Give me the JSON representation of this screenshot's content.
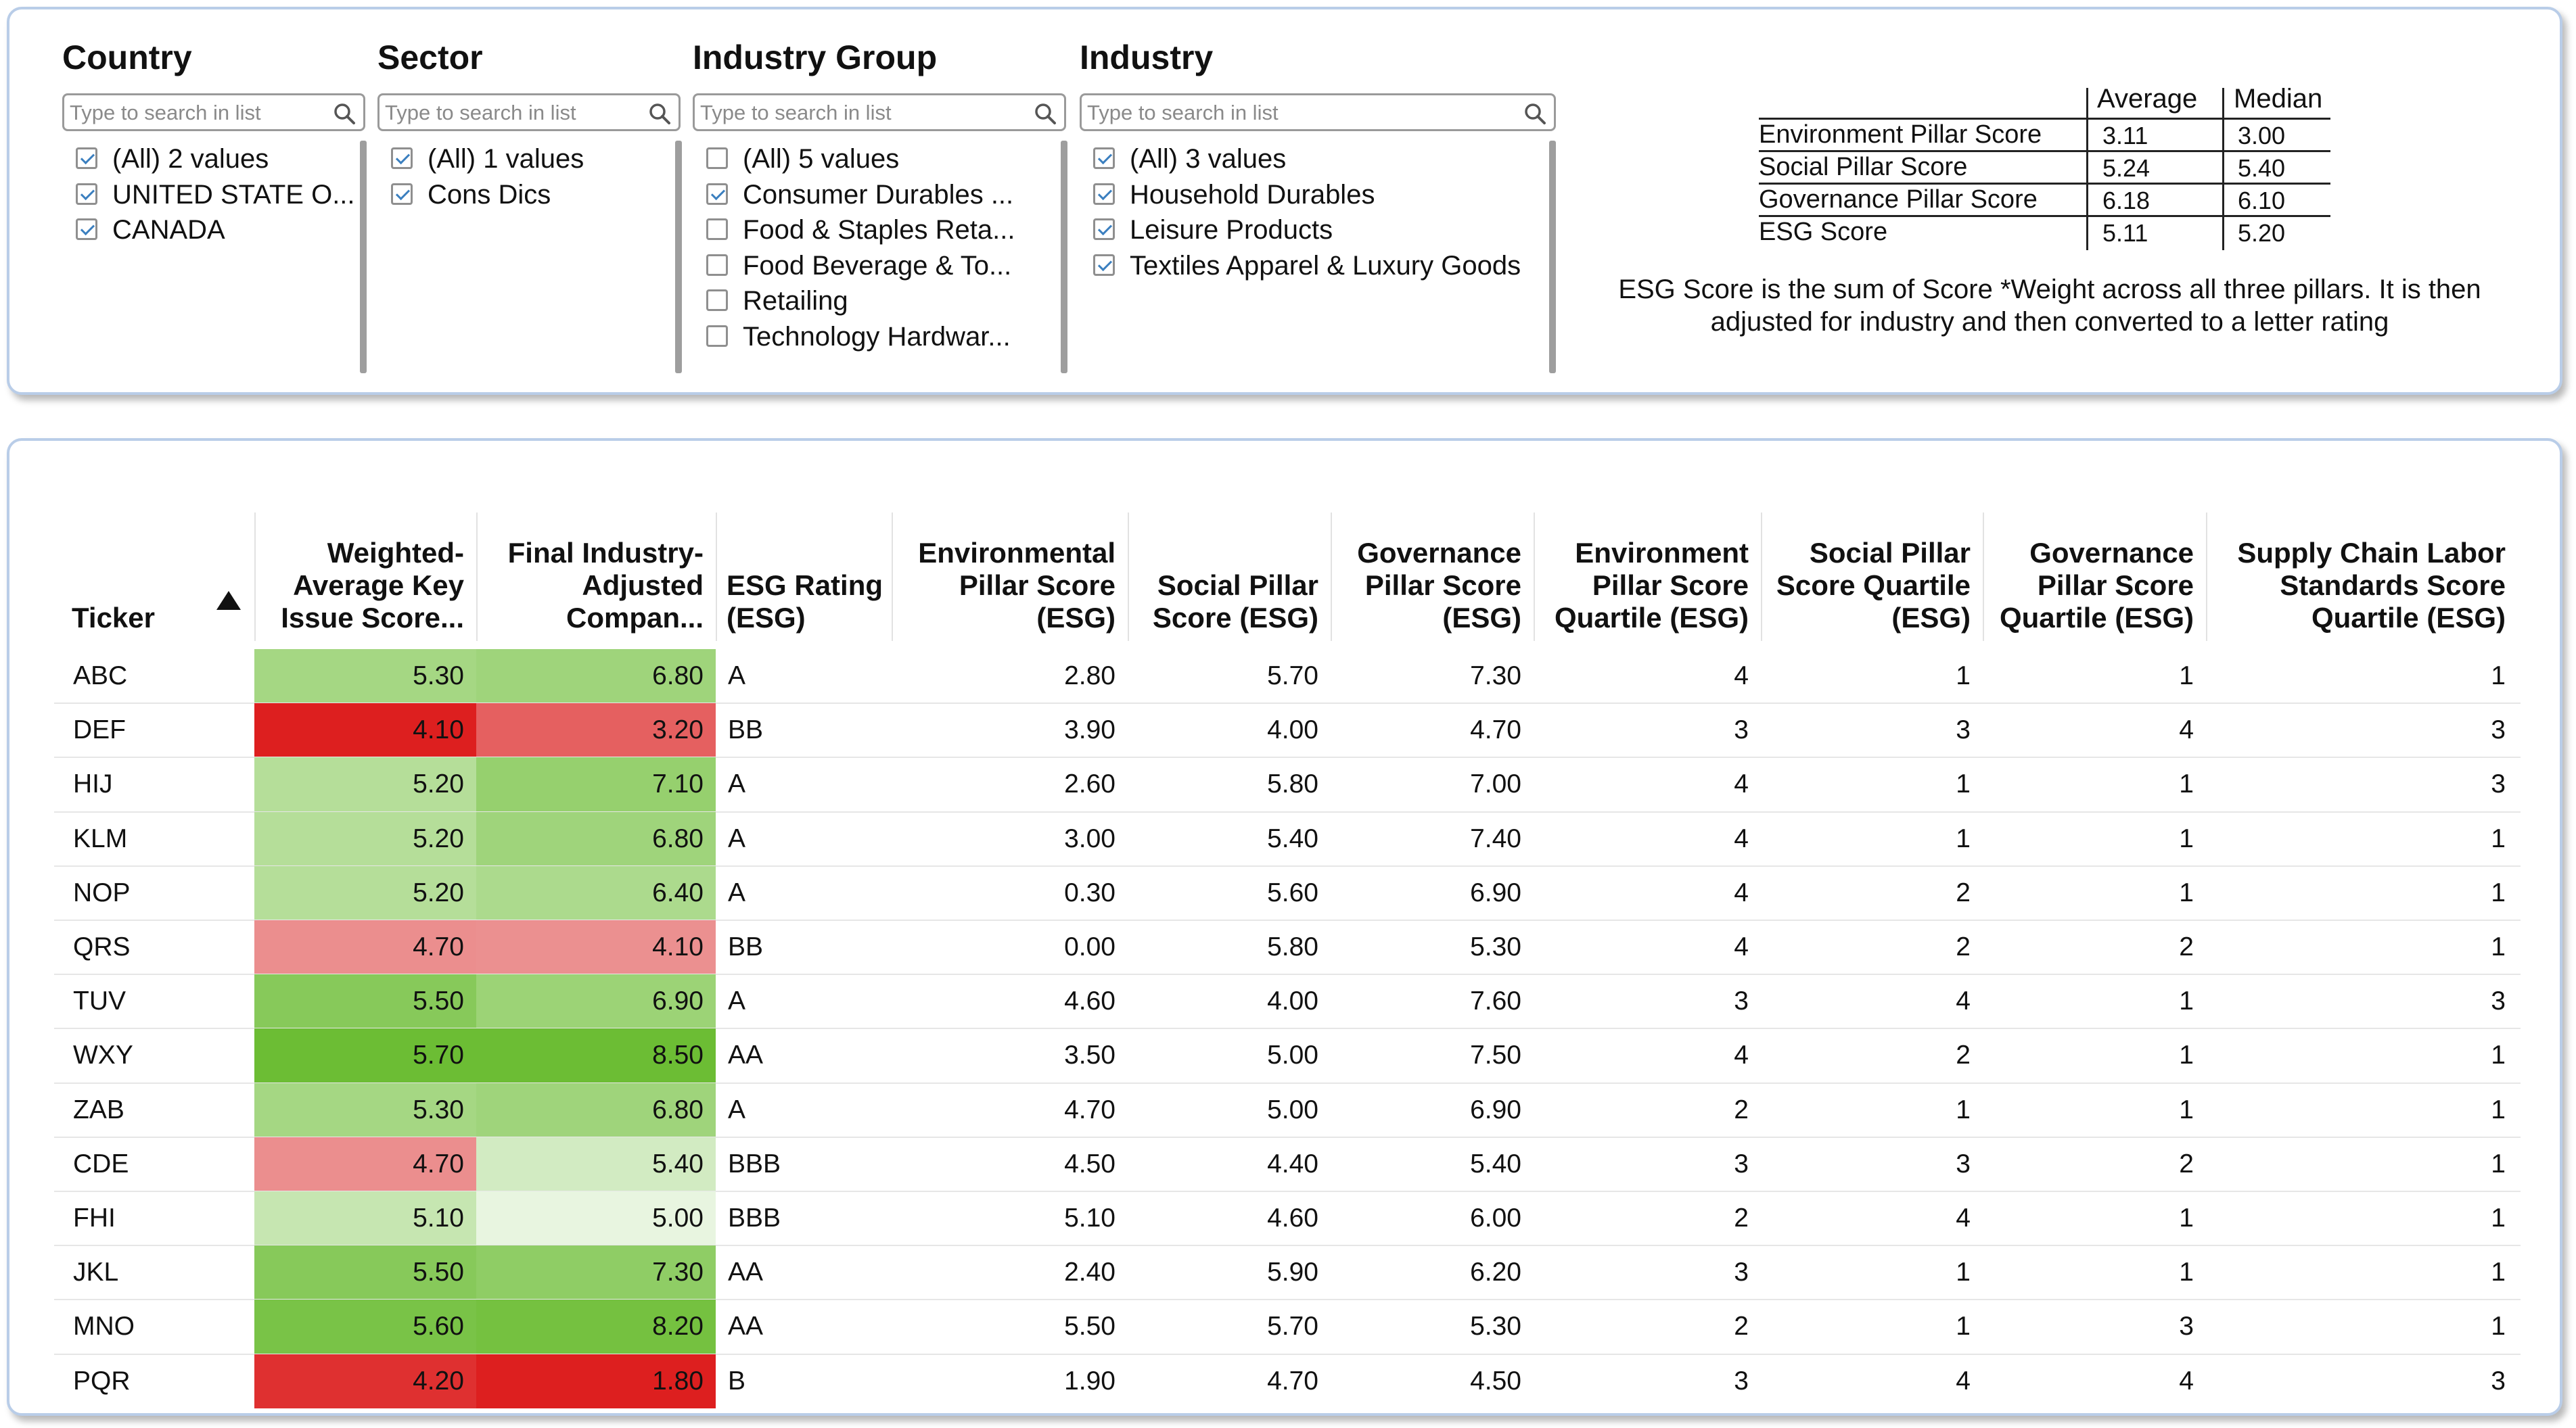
{
  "filters": [
    {
      "title": "Country",
      "placeholder": "Type to search in list",
      "options": [
        {
          "label": "(All) 2 values",
          "checked": true
        },
        {
          "label": "UNITED STATE O...",
          "checked": true
        },
        {
          "label": "CANADA",
          "checked": true
        }
      ]
    },
    {
      "title": "Sector",
      "placeholder": "Type to search in list",
      "options": [
        {
          "label": "(All) 1 values",
          "checked": true
        },
        {
          "label": "Cons Dics",
          "checked": true
        }
      ]
    },
    {
      "title": "Industry Group",
      "placeholder": "Type to search in list",
      "options": [
        {
          "label": "(All) 5 values",
          "checked": false
        },
        {
          "label": "Consumer Durables ...",
          "checked": true
        },
        {
          "label": "Food & Staples Reta...",
          "checked": false
        },
        {
          "label": "Food Beverage & To...",
          "checked": false
        },
        {
          "label": "Retailing",
          "checked": false
        },
        {
          "label": "Technology Hardwar...",
          "checked": false
        }
      ]
    },
    {
      "title": "Industry",
      "placeholder": "Type to search in list",
      "options": [
        {
          "label": "(All) 3 values",
          "checked": true
        },
        {
          "label": "Household Durables",
          "checked": true
        },
        {
          "label": "Leisure Products",
          "checked": true
        },
        {
          "label": "Textiles Apparel & Luxury Goods",
          "checked": true
        }
      ]
    }
  ],
  "stats": {
    "headers": [
      "Average",
      "Median"
    ],
    "rows": [
      {
        "label": "Environment Pillar Score",
        "average": "3.11",
        "median": "3.00"
      },
      {
        "label": "Social Pillar Score",
        "average": "5.24",
        "median": "5.40"
      },
      {
        "label": "Governance Pillar Score",
        "average": "6.18",
        "median": "6.10"
      },
      {
        "label": "ESG Score",
        "average": "5.11",
        "median": "5.20"
      }
    ],
    "note": "ESG Score is the sum of Score *Weight across all three pillars. It is then adjusted for industry and then converted to a letter rating"
  },
  "table": {
    "headers": [
      "Ticker",
      "Weighted-Average Key Issue Score...",
      "Final Industry-Adjusted Compan...",
      "ESG Rating (ESG)",
      "Environmental Pillar Score (ESG)",
      "Social Pillar Score (ESG)",
      "Governance Pillar Score (ESG)",
      "Environment Pillar Score Quartile (ESG)",
      "Social Pillar Score Quartile (ESG)",
      "Governance Pillar Score Quartile (ESG)",
      "Supply Chain Labor Standards Score Quartile (ESG)"
    ],
    "colors": {
      "green_dark": "#6cbd34",
      "green_light": "#e8f5e0",
      "red_dark": "#dd1f1f",
      "red_light": "#f3d0d0"
    },
    "rows": [
      [
        "ABC",
        "5.30",
        "6.80",
        "A",
        "2.80",
        "5.70",
        "7.30",
        "4",
        "1",
        "1",
        "1"
      ],
      [
        "DEF",
        "4.10",
        "3.20",
        "BB",
        "3.90",
        "4.00",
        "4.70",
        "3",
        "3",
        "4",
        "3"
      ],
      [
        "HIJ",
        "5.20",
        "7.10",
        "A",
        "2.60",
        "5.80",
        "7.00",
        "4",
        "1",
        "1",
        "3"
      ],
      [
        "KLM",
        "5.20",
        "6.80",
        "A",
        "3.00",
        "5.40",
        "7.40",
        "4",
        "1",
        "1",
        "1"
      ],
      [
        "NOP",
        "5.20",
        "6.40",
        "A",
        "0.30",
        "5.60",
        "6.90",
        "4",
        "2",
        "1",
        "1"
      ],
      [
        "QRS",
        "4.70",
        "4.10",
        "BB",
        "0.00",
        "5.80",
        "5.30",
        "4",
        "2",
        "2",
        "1"
      ],
      [
        "TUV",
        "5.50",
        "6.90",
        "A",
        "4.60",
        "4.00",
        "7.60",
        "3",
        "4",
        "1",
        "3"
      ],
      [
        "WXY",
        "5.70",
        "8.50",
        "AA",
        "3.50",
        "5.00",
        "7.50",
        "4",
        "2",
        "1",
        "1"
      ],
      [
        "ZAB",
        "5.30",
        "6.80",
        "A",
        "4.70",
        "5.00",
        "6.90",
        "2",
        "1",
        "1",
        "1"
      ],
      [
        "CDE",
        "4.70",
        "5.40",
        "BBB",
        "4.50",
        "4.40",
        "5.40",
        "3",
        "3",
        "2",
        "1"
      ],
      [
        "FHI",
        "5.10",
        "5.00",
        "BBB",
        "5.10",
        "4.60",
        "6.00",
        "2",
        "4",
        "1",
        "1"
      ],
      [
        "JKL",
        "5.50",
        "7.30",
        "AA",
        "2.40",
        "5.90",
        "6.20",
        "3",
        "1",
        "1",
        "1"
      ],
      [
        "MNO",
        "5.60",
        "8.20",
        "AA",
        "5.50",
        "5.70",
        "5.30",
        "2",
        "1",
        "3",
        "1"
      ],
      [
        "PQR",
        "4.20",
        "1.80",
        "B",
        "1.90",
        "4.70",
        "4.50",
        "3",
        "4",
        "4",
        "3"
      ]
    ]
  }
}
